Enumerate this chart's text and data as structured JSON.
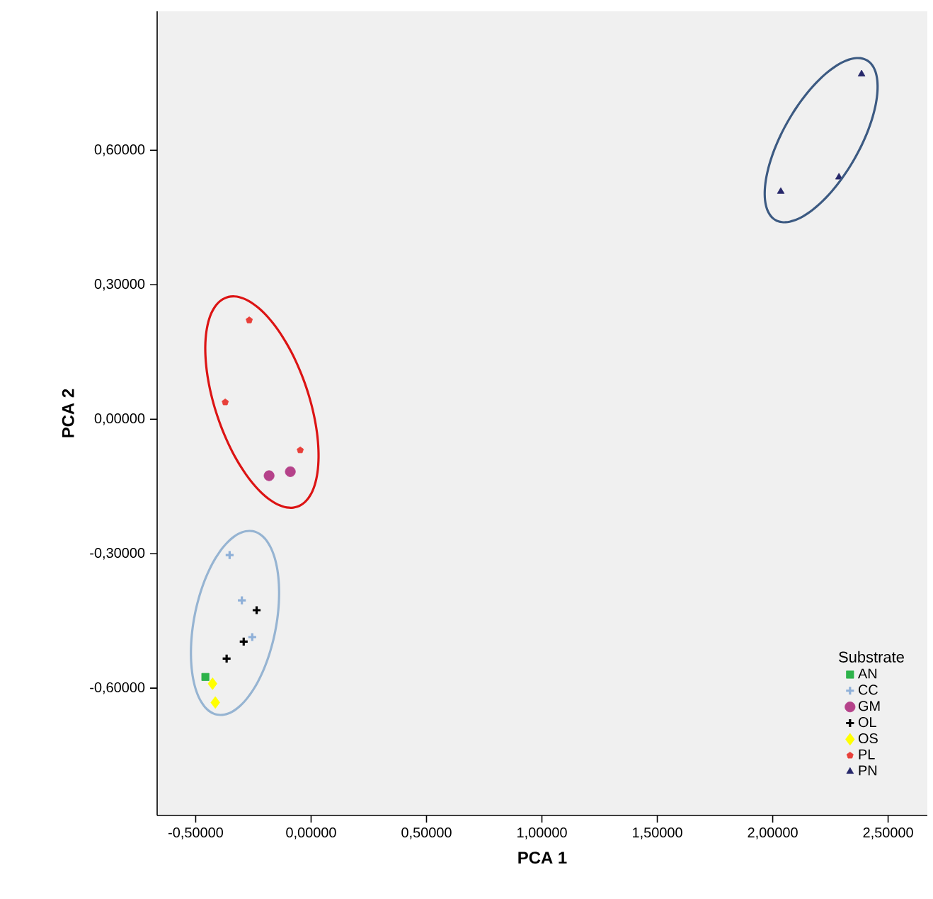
{
  "chart_data": {
    "type": "scatter",
    "xlabel": "PCA 1",
    "ylabel": "PCA 2",
    "legend_title": "Substrate",
    "legend": "bottom right",
    "grid": false,
    "xlim": [
      -0.667,
      2.67
    ],
    "ylim": [
      -0.884,
      0.91
    ],
    "xticks": [
      {
        "value": -0.5,
        "label": "-0,50000"
      },
      {
        "value": 0,
        "label": "0,00000"
      },
      {
        "value": 0.5,
        "label": "0,50000"
      },
      {
        "value": 1,
        "label": "1,00000"
      },
      {
        "value": 1.5,
        "label": "1,50000"
      },
      {
        "value": 2,
        "label": "2,00000"
      },
      {
        "value": 2.5,
        "label": "2,50000"
      }
    ],
    "yticks": [
      {
        "value": -0.6,
        "label": "-0,60000"
      },
      {
        "value": -0.3,
        "label": "-0,30000"
      },
      {
        "value": 0,
        "label": "0,00000"
      },
      {
        "value": 0.3,
        "label": "0,30000"
      },
      {
        "value": 0.6,
        "label": "0,60000"
      }
    ],
    "series": [
      {
        "name": "AN",
        "color": "#2db34a",
        "marker": "square",
        "x": [
          -0.458
        ],
        "values": [
          -0.575
        ]
      },
      {
        "name": "CC",
        "color": "#8fb0d8",
        "marker": "cross",
        "x": [
          -0.353,
          -0.3,
          -0.255
        ],
        "values": [
          -0.303,
          -0.404,
          -0.486
        ]
      },
      {
        "name": "GM",
        "color": "#b5428a",
        "marker": "circle",
        "x": [
          -0.182,
          -0.09
        ],
        "values": [
          -0.126,
          -0.117
        ]
      },
      {
        "name": "OL",
        "color": "#000000",
        "marker": "cross",
        "x": [
          -0.236,
          -0.292,
          -0.366
        ],
        "values": [
          -0.426,
          -0.496,
          -0.534
        ]
      },
      {
        "name": "OS",
        "color": "#ffff00",
        "marker": "diamond",
        "x": [
          -0.427,
          -0.415
        ],
        "values": [
          -0.59,
          -0.632
        ]
      },
      {
        "name": "PL",
        "color": "#e8403a",
        "marker": "star",
        "x": [
          -0.268,
          -0.372,
          -0.047
        ],
        "values": [
          0.221,
          0.038,
          -0.069
        ]
      },
      {
        "name": "PN",
        "color": "#27286b",
        "marker": "triangle",
        "x": [
          2.385,
          2.035,
          2.287
        ],
        "values": [
          0.77,
          0.508,
          0.54
        ]
      }
    ]
  }
}
